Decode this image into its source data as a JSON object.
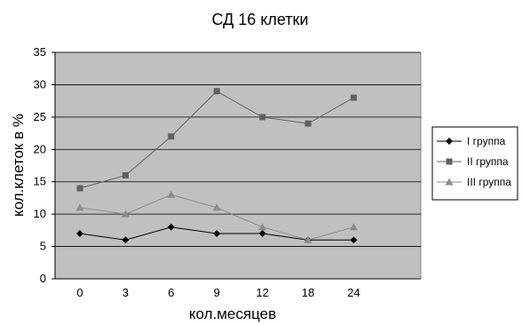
{
  "chart_data": {
    "type": "line",
    "title": "СД 16 клетки",
    "xlabel": "кол.месяцев",
    "ylabel": "кол.клеток в %",
    "categories": [
      "0",
      "3",
      "6",
      "9",
      "12",
      "18",
      "24"
    ],
    "ylim": [
      0,
      35
    ],
    "yticks": [
      "0",
      "5",
      "10",
      "15",
      "20",
      "25",
      "30",
      "35"
    ],
    "grid": true,
    "legend_position": "right",
    "plot_background": "#c0c0c0",
    "series": [
      {
        "name": "I группа",
        "values": [
          7,
          6,
          8,
          7,
          7,
          6,
          6
        ],
        "color": "#000000",
        "marker": "diamond"
      },
      {
        "name": "II группа",
        "values": [
          14,
          16,
          22,
          29,
          25,
          24,
          28
        ],
        "color": "#606060",
        "marker": "square"
      },
      {
        "name": "III группа",
        "values": [
          11,
          10,
          13,
          11,
          8,
          6,
          8
        ],
        "color": "#8c8c8c",
        "marker": "triangle"
      }
    ]
  }
}
